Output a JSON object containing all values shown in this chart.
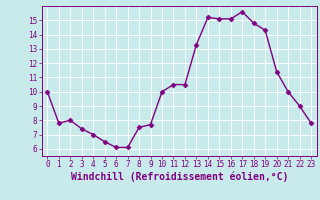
{
  "x": [
    0,
    1,
    2,
    3,
    4,
    5,
    6,
    7,
    8,
    9,
    10,
    11,
    12,
    13,
    14,
    15,
    16,
    17,
    18,
    19,
    20,
    21,
    22,
    23
  ],
  "y": [
    10.0,
    7.8,
    8.0,
    7.4,
    7.0,
    6.5,
    6.1,
    6.1,
    7.5,
    7.7,
    10.0,
    10.5,
    10.5,
    13.3,
    15.2,
    15.1,
    15.1,
    15.6,
    14.8,
    14.3,
    11.4,
    10.0,
    9.0,
    7.8
  ],
  "line_color": "#800080",
  "marker": "D",
  "markersize": 2.5,
  "linewidth": 1.0,
  "xlabel": "Windchill (Refroidissement éolien,°C)",
  "xlabel_fontsize": 7,
  "xlim": [
    -0.5,
    23.5
  ],
  "ylim": [
    5.5,
    16.0
  ],
  "yticks": [
    6,
    7,
    8,
    9,
    10,
    11,
    12,
    13,
    14,
    15
  ],
  "xticks": [
    0,
    1,
    2,
    3,
    4,
    5,
    6,
    7,
    8,
    9,
    10,
    11,
    12,
    13,
    14,
    15,
    16,
    17,
    18,
    19,
    20,
    21,
    22,
    23
  ],
  "background_color": "#c8eaea",
  "grid_color": "#b0d8d8",
  "tick_color": "#800080",
  "tick_fontsize": 5.5,
  "spine_color": "#800080"
}
